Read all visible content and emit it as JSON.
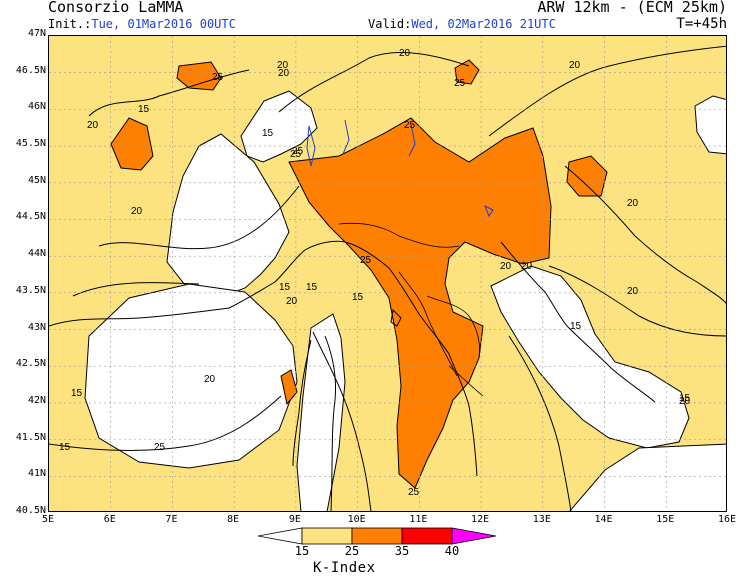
{
  "header": {
    "org": "Consorzio LaMMA",
    "model": "ARW 12km - (ECM 25km)",
    "init_label": "Init.:",
    "init_value": "Tue, 01Mar2016 00UTC",
    "valid_label": "Valid:",
    "valid_value": "Wed, 02Mar2016 21UTC",
    "lead_time": "T=+45h"
  },
  "axes": {
    "lat_ticks": [
      "47N",
      "46.5N",
      "46N",
      "45.5N",
      "45N",
      "44.5N",
      "44N",
      "43.5N",
      "43N",
      "42.5N",
      "42N",
      "41.5N",
      "41N",
      "40.5N"
    ],
    "lon_ticks": [
      "5E",
      "6E",
      "7E",
      "8E",
      "9E",
      "10E",
      "11E",
      "12E",
      "13E",
      "14E",
      "15E",
      "16E"
    ]
  },
  "contour_labels": [
    "20",
    "25",
    "20",
    "15",
    "25",
    "20",
    "15",
    "25",
    "20",
    "20",
    "25",
    "20",
    "25",
    "20",
    "25",
    "20",
    "15",
    "20",
    "15",
    "15",
    "20",
    "25",
    "20",
    "15",
    "15",
    "20",
    "15",
    "25",
    "15",
    "20"
  ],
  "legend": {
    "title": "K-Index",
    "values": [
      "15",
      "25",
      "35",
      "40"
    ],
    "colors": [
      "#ffffff",
      "#fde37f",
      "#ff7f00",
      "#ff0000",
      "#ff00ff"
    ]
  }
}
